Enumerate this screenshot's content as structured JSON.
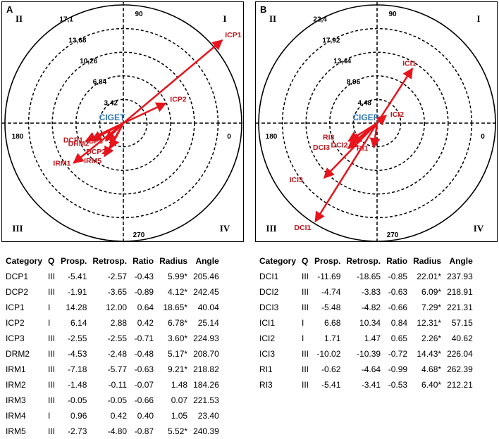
{
  "chart_data": [
    {
      "type": "polar-vector",
      "panel_label": "A",
      "center_label": "CIGET",
      "ring_labels": [
        "3,42",
        "6,84",
        "10,26",
        "13,68",
        "17,1"
      ],
      "rmax": 17.1,
      "angle_labels": {
        "0": "0",
        "90": "90",
        "180": "180",
        "270": "270"
      },
      "quadrant_labels": {
        "I": "I",
        "II": "II",
        "III": "III",
        "IV": "IV"
      },
      "vectors": [
        {
          "label": "ICP1",
          "radius": 18.65,
          "angle": 40.04
        },
        {
          "label": "ICP2",
          "radius": 6.78,
          "angle": 25.14
        },
        {
          "label": "DCP1",
          "radius": 5.99,
          "angle": 205.46
        },
        {
          "label": "DRM2",
          "radius": 5.17,
          "angle": 208.7
        },
        {
          "label": "ICP3",
          "radius": 3.6,
          "angle": 224.93
        },
        {
          "label": "DCP2",
          "radius": 4.12,
          "angle": 242.45
        },
        {
          "label": "IRM1",
          "radius": 9.21,
          "angle": 218.82
        },
        {
          "label": "IRM5",
          "radius": 5.52,
          "angle": 240.39
        }
      ]
    },
    {
      "type": "polar-vector",
      "panel_label": "B",
      "center_label": "CIGEP",
      "ring_labels": [
        "4,48",
        "8,96",
        "13,44",
        "17,92",
        "22,4"
      ],
      "rmax": 22.4,
      "angle_labels": {
        "0": "0",
        "90": "90",
        "180": "180",
        "270": "270"
      },
      "quadrant_labels": {
        "I": "I",
        "II": "II",
        "III": "III",
        "IV": "IV"
      },
      "vectors": [
        {
          "label": "ICI1",
          "radius": 12.31,
          "angle": 57.15
        },
        {
          "label": "ICI2",
          "radius": 2.26,
          "angle": 40.62
        },
        {
          "label": "RI3",
          "radius": 6.4,
          "angle": 212.21
        },
        {
          "label": "DCI3",
          "radius": 7.29,
          "angle": 221.31
        },
        {
          "label": "DCI2",
          "radius": 6.09,
          "angle": 218.91
        },
        {
          "label": "RI1",
          "radius": 4.68,
          "angle": 262.39
        },
        {
          "label": "ICI3",
          "radius": 14.43,
          "angle": 226.04
        },
        {
          "label": "DCI1",
          "radius": 22.01,
          "angle": 237.93
        }
      ]
    }
  ],
  "tableA": {
    "headers": [
      "Category",
      "Q",
      "Prosp.",
      "Retrosp.",
      "Ratio",
      "Radius",
      "Angle"
    ],
    "rows": [
      [
        "DCP1",
        "III",
        "-5.41",
        "-2.57",
        "-0.43",
        "5.99*",
        "205.46"
      ],
      [
        "DCP2",
        "III",
        "-1.91",
        "-3.65",
        "-0.89",
        "4.12*",
        "242.45"
      ],
      [
        "ICP1",
        "I",
        "14.28",
        "12.00",
        "0.64",
        "18.65*",
        "40.04"
      ],
      [
        "ICP2",
        "I",
        "6.14",
        "2.88",
        "0.42",
        "6.78*",
        "25.14"
      ],
      [
        "ICP3",
        "III",
        "-2.55",
        "-2.55",
        "-0.71",
        "3.60*",
        "224.93"
      ],
      [
        "DRM2",
        "III",
        "-4.53",
        "-2.48",
        "-0.48",
        "5.17*",
        "208.70"
      ],
      [
        "IRM1",
        "III",
        "-7.18",
        "-5.77",
        "-0.63",
        "9.21*",
        "218.82"
      ],
      [
        "IRM2",
        "III",
        "-1.48",
        "-0.11",
        "-0.07",
        "1.48",
        "184.26"
      ],
      [
        "IRM3",
        "III",
        "-0.05",
        "-0.05",
        "-0.66",
        "0.07",
        "221.53"
      ],
      [
        "IRM4",
        "I",
        "0.96",
        "0.42",
        "0.40",
        "1.05",
        "23.40"
      ],
      [
        "IRM5",
        "III",
        "-2.73",
        "-4.80",
        "-0.87",
        "5.52*",
        "240.39"
      ]
    ]
  },
  "tableB": {
    "headers": [
      "Category",
      "Q",
      "Prosp.",
      "Retrosp.",
      "Ratio",
      "Radius",
      "Angle"
    ],
    "rows": [
      [
        "DCI1",
        "III",
        "-11.69",
        "-18.65",
        "-0.85",
        "22.01*",
        "237.93"
      ],
      [
        "DCI2",
        "III",
        "-4.74",
        "-3.83",
        "-0.63",
        "6.09*",
        "218.91"
      ],
      [
        "DCI3",
        "III",
        "-5.48",
        "-4.82",
        "-0.66",
        "7.29*",
        "221.31"
      ],
      [
        "ICI1",
        "I",
        "6.68",
        "10.34",
        "0.84",
        "12.31*",
        "57.15"
      ],
      [
        "ICI2",
        "I",
        "1.71",
        "1.47",
        "0.65",
        "2.26*",
        "40.62"
      ],
      [
        "ICI3",
        "III",
        "-10.02",
        "-10.39",
        "-0.72",
        "14.43*",
        "226.04"
      ],
      [
        "RI1",
        "III",
        "-0.62",
        "-4.64",
        "-0.99",
        "4.68*",
        "262.39"
      ],
      [
        "RI3",
        "III",
        "-5.41",
        "-3.41",
        "-0.53",
        "6.40*",
        "212.21"
      ]
    ]
  },
  "colors": {
    "vector": "#e8141c",
    "vector_label": "#c0181f",
    "center_label": "#2e75b6",
    "axis": "#000000"
  }
}
